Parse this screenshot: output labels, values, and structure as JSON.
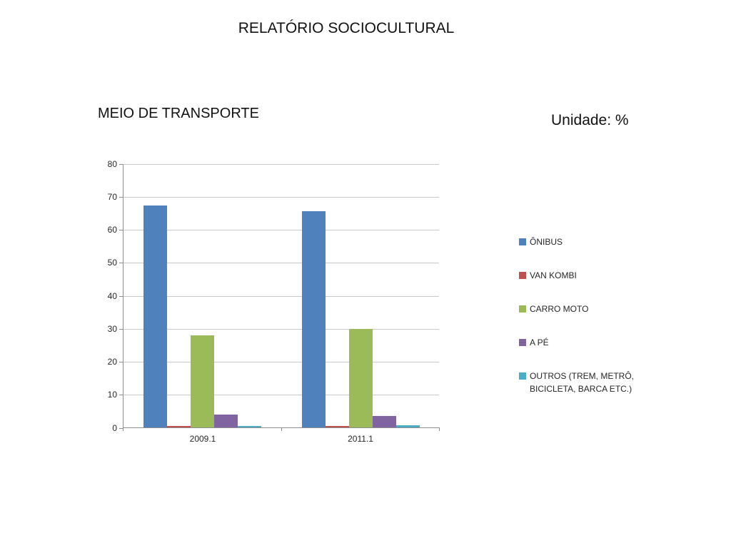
{
  "slide": {
    "title": "RELATÓRIO SOCIOCULTURAL",
    "chart_title": "MEIO DE TRANSPORTE",
    "unit_label": "Unidade: %"
  },
  "chart_data": {
    "type": "bar",
    "title": "MEIO DE TRANSPORTE",
    "unit": "%",
    "categories": [
      "2009.1",
      "2011.1"
    ],
    "series": [
      {
        "name": "ÔNIBUS",
        "color": "#4F81BD",
        "values": [
          67.4,
          65.7
        ]
      },
      {
        "name": "VAN KOMBI",
        "color": "#C0504D",
        "values": [
          0.5,
          0.4
        ]
      },
      {
        "name": "CARRO MOTO",
        "color": "#9BBB59",
        "values": [
          28,
          30
        ]
      },
      {
        "name": "A PÉ",
        "color": "#8064A2",
        "values": [
          3.9,
          3.5
        ]
      },
      {
        "name": "OUTROS (TREM, METRÔ, BICICLETA, BARCA ETC.)",
        "color": "#4BACC6",
        "values": [
          0.4,
          0.6
        ]
      }
    ],
    "xlabel": "",
    "ylabel": "",
    "ylim": [
      0,
      80
    ],
    "yticks": [
      0,
      10,
      20,
      30,
      40,
      50,
      60,
      70,
      80
    ],
    "grid": true,
    "legend_position": "right"
  }
}
